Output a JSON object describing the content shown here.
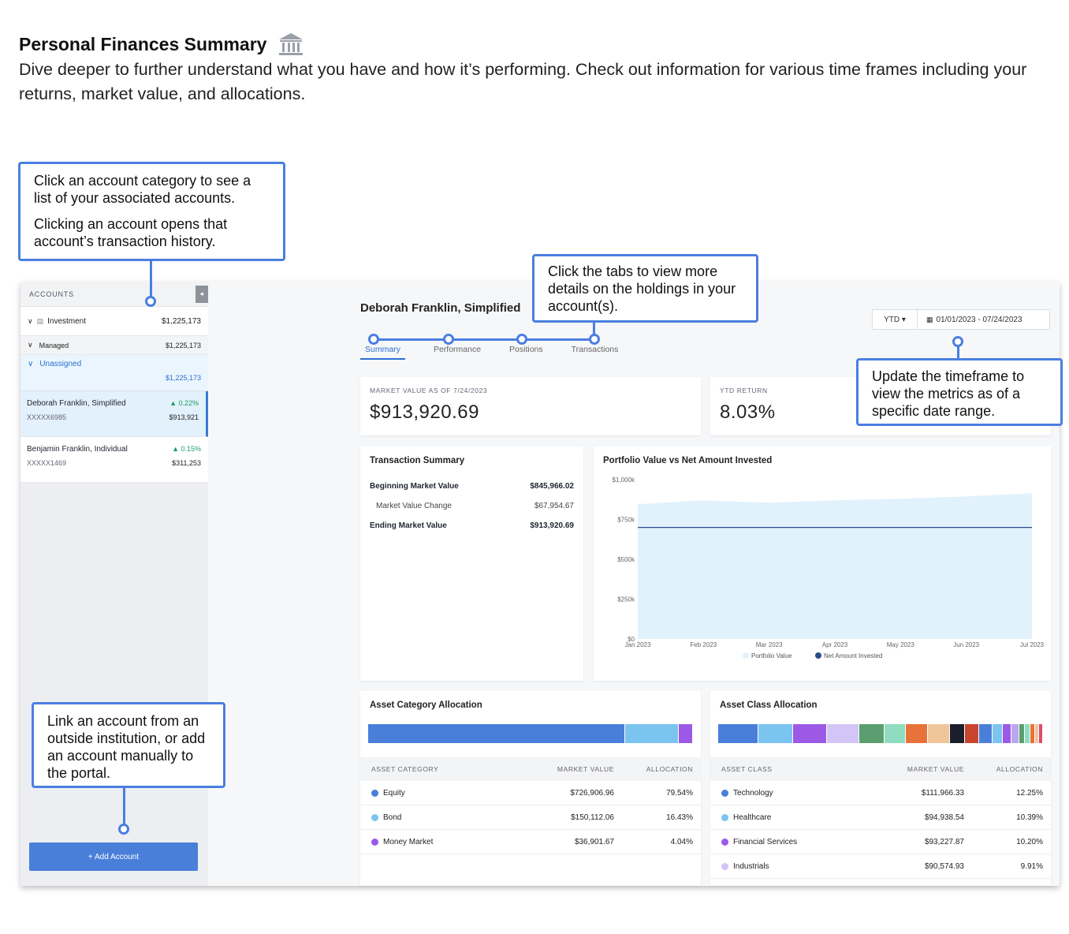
{
  "header": {
    "title": "Personal Finances Summary",
    "description": "Dive deeper to further understand what you have and how it’s performing. Check out information for various time frames including your returns, market value, and allocations."
  },
  "callouts": {
    "accounts_p1": "Click an account category to see a list of your associated accounts.",
    "accounts_p2": "Clicking an account opens that account’s transaction history.",
    "tabs": "Click the tabs to view more details on the holdings in your account(s).",
    "timeframe": "Update the timeframe to view the metrics as of a specific date range.",
    "link": "Link an account from an outside institution, or add an account manually to the portal."
  },
  "sidebar": {
    "heading": "ACCOUNTS",
    "investment": {
      "label": "Investment",
      "amount": "$1,225,173"
    },
    "managed": {
      "label": "Managed",
      "amount": "$1,225,173"
    },
    "unassigned": {
      "label": "Unassigned",
      "amount": "$1,225,173"
    },
    "accounts": [
      {
        "name": "Deborah Franklin, Simplified",
        "number": "XXXXX6985",
        "change": "▲ 0.22%",
        "amount": "$913,921"
      },
      {
        "name": "Benjamin Franklin, Individual",
        "number": "XXXXX1469",
        "change": "▲ 0.15%",
        "amount": "$311,253"
      }
    ],
    "add_button": "+ Add Account"
  },
  "main": {
    "account_name": "Deborah Franklin, Simplified",
    "tabs": [
      "Summary",
      "Performance",
      "Positions",
      "Transactions"
    ],
    "timeframe": {
      "select": "YTD ▾",
      "range": "01/01/2023 - 07/24/2023"
    },
    "market_value": {
      "label": "MARKET VALUE AS OF 7/24/2023",
      "value": "$913,920.69"
    },
    "ytd_return": {
      "label": "YTD RETURN",
      "value": "8.03%"
    },
    "transaction_summary": {
      "title": "Transaction Summary",
      "rows": [
        {
          "label": "Beginning Market Value",
          "value": "$845,966.02"
        },
        {
          "label": "Market Value Change",
          "value": "$67,954.67"
        },
        {
          "label": "Ending Market Value",
          "value": "$913,920.69"
        }
      ]
    },
    "asset_category": {
      "title": "Asset Category Allocation",
      "headers": [
        "ASSET CATEGORY",
        "MARKET VALUE",
        "ALLOCATION"
      ],
      "rows": [
        {
          "name": "Equity",
          "value": "$726,906.96",
          "alloc": "79.54%",
          "color": "#4a7fd9"
        },
        {
          "name": "Bond",
          "value": "$150,112.06",
          "alloc": "16.43%",
          "color": "#7cc4f0"
        },
        {
          "name": "Money Market",
          "value": "$36,901.67",
          "alloc": "4.04%",
          "color": "#9b59e6"
        }
      ]
    },
    "asset_class": {
      "title": "Asset Class Allocation",
      "headers": [
        "ASSET CLASS",
        "MARKET VALUE",
        "ALLOCATION"
      ],
      "rows": [
        {
          "name": "Technology",
          "value": "$111,966.33",
          "alloc": "12.25%",
          "color": "#4a7fd9"
        },
        {
          "name": "Healthcare",
          "value": "$94,938.54",
          "alloc": "10.39%",
          "color": "#7cc4f0"
        },
        {
          "name": "Financial Services",
          "value": "$93,227.87",
          "alloc": "10.20%",
          "color": "#9b59e6"
        },
        {
          "name": "Industrials",
          "value": "$90,574.93",
          "alloc": "9.91%",
          "color": "#d3c5f5"
        }
      ],
      "bar_segments": [
        {
          "color": "#4a7fd9",
          "share": 12.25
        },
        {
          "color": "#7cc4f0",
          "share": 10.39
        },
        {
          "color": "#9b59e6",
          "share": 10.2
        },
        {
          "color": "#d3c5f5",
          "share": 9.91
        },
        {
          "color": "#5a9e6f",
          "share": 7.5
        },
        {
          "color": "#8fdcc0",
          "share": 6.5
        },
        {
          "color": "#e8733a",
          "share": 6.5
        },
        {
          "color": "#f0c59a",
          "share": 6.5
        },
        {
          "color": "#1a1f2b",
          "share": 4.5
        },
        {
          "color": "#c9452e",
          "share": 4.0
        },
        {
          "color": "#4a7fd9",
          "share": 4.0
        },
        {
          "color": "#7cc4f0",
          "share": 3.0
        },
        {
          "color": "#9b59e6",
          "share": 2.5
        },
        {
          "color": "#b9a8f0",
          "share": 2.0
        },
        {
          "color": "#5a9e6f",
          "share": 1.5
        },
        {
          "color": "#8fdcc0",
          "share": 1.5
        },
        {
          "color": "#e8733a",
          "share": 1.2
        },
        {
          "color": "#f0c59a",
          "share": 1.0
        },
        {
          "color": "#e04a6a",
          "share": 1.0
        }
      ]
    }
  },
  "chart_data": {
    "type": "area",
    "title": "Portfolio Value vs Net Amount Invested",
    "x": [
      "Jan 2023",
      "Feb 2023",
      "Mar 2023",
      "Apr 2023",
      "May 2023",
      "Jun 2023",
      "Jul 2023"
    ],
    "yticks": [
      "$0",
      "$250k",
      "$500k",
      "$750k",
      "$1,000k"
    ],
    "ylim": [
      0,
      1000000
    ],
    "series": [
      {
        "name": "Portfolio Value",
        "type": "area",
        "color": "#e2f2fc",
        "values": [
          845966,
          870000,
          855000,
          870000,
          880000,
          895000,
          913921
        ]
      },
      {
        "name": "Net Amount Invested",
        "type": "line",
        "color": "#2b4c8c",
        "values": [
          700000,
          700000,
          700000,
          700000,
          700000,
          700000,
          700000
        ]
      }
    ],
    "legend": "bottom"
  }
}
